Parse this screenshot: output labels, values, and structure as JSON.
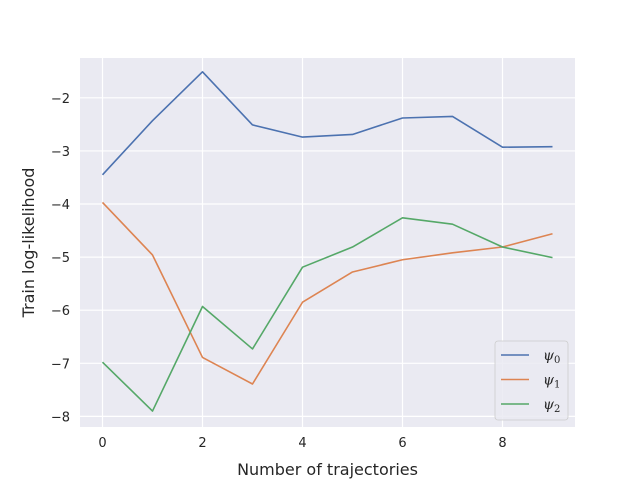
{
  "chart_data": {
    "type": "line",
    "title": "",
    "xlabel": "Number of trajectories",
    "ylabel": "Train log-likelihood",
    "x": [
      0,
      1,
      2,
      3,
      4,
      5,
      6,
      7,
      8,
      9
    ],
    "xlim": [
      -0.45,
      9.45
    ],
    "ylim": [
      -8.2,
      -1.25
    ],
    "xticks": [
      0,
      2,
      4,
      6,
      8
    ],
    "yticks": [
      -8,
      -7,
      -6,
      -5,
      -4,
      -3,
      -2
    ],
    "ytick_labels": [
      "−8",
      "−7",
      "−6",
      "−5",
      "−4",
      "−3",
      "−2"
    ],
    "grid": true,
    "legend_position": "bottom-right",
    "series": [
      {
        "name": "ψ",
        "sub": "0",
        "color": "#4c72b0",
        "values": [
          -3.45,
          -2.43,
          -1.51,
          -2.51,
          -2.74,
          -2.69,
          -2.38,
          -2.35,
          -2.93,
          -2.92
        ]
      },
      {
        "name": "ψ",
        "sub": "1",
        "color": "#dd8452",
        "values": [
          -3.97,
          -4.96,
          -6.89,
          -7.39,
          -5.85,
          -5.28,
          -5.05,
          -4.92,
          -4.81,
          -4.56
        ]
      },
      {
        "name": "ψ",
        "sub": "2",
        "color": "#55a868",
        "values": [
          -6.98,
          -7.9,
          -5.93,
          -6.73,
          -5.19,
          -4.81,
          -4.26,
          -4.38,
          -4.81,
          -5.01
        ]
      }
    ]
  }
}
